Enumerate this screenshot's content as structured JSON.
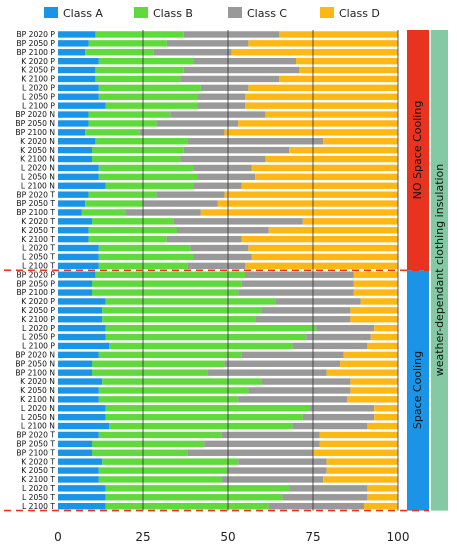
{
  "chart_data": {
    "type": "bar",
    "orientation": "horizontal",
    "stacked": true,
    "legend_position": "top",
    "grid": false,
    "xlim": [
      0,
      100
    ],
    "x_ticks": [
      "0",
      "25",
      "50",
      "75",
      "100"
    ],
    "categories": [
      "BP 2020 P",
      "BP 2050 P",
      "BP 2100 P",
      "K 2020 P",
      "K 2050 P",
      "K 2100 P",
      "L 2020 P",
      "L 2050 P",
      "L 2100 P",
      "BP 2020 N",
      "BP 2050 N",
      "BP 2100 N",
      "K 2020 N",
      "K 2050 N",
      "K 2100 N",
      "L 2020 N",
      "L 2050 N",
      "L 2100 N",
      "BP 2020 T",
      "BP 2050 T",
      "BP 2100 T",
      "K 2020 T",
      "K 2050 T",
      "K 2100 T",
      "L 2020 T",
      "L 2050 T",
      "L 2100 T",
      "BP 2020 P",
      "BP 2050 P",
      "BP 2100 P",
      "K 2020 P",
      "K 2050 P",
      "K 2100 P",
      "L 2020 P",
      "L 2050 P",
      "L 2100 P",
      "BP 2020 N",
      "BP 2050 N",
      "BP 2100 N",
      "K 2020 N",
      "K 2050 N",
      "K 2100 N",
      "L 2020 N",
      "L 2050 N",
      "L 2100 N",
      "BP 2020 T",
      "BP 2050 T",
      "BP 2100 T",
      "K 2020 T",
      "K 2050 T",
      "K 2100 T",
      "L 2020 T",
      "L 2050 T",
      "L 2100 T"
    ],
    "series": [
      {
        "name": "Class A",
        "color": "#1a94e6",
        "values": [
          11,
          9,
          8,
          12,
          11,
          11,
          12,
          12,
          14,
          9,
          9,
          8,
          11,
          10,
          10,
          12,
          12,
          14,
          9,
          8,
          7,
          10,
          9,
          9,
          12,
          12,
          12,
          11,
          10,
          10,
          14,
          13,
          13,
          14,
          14,
          15,
          12,
          10,
          10,
          13,
          12,
          12,
          14,
          14,
          15,
          12,
          10,
          10,
          13,
          12,
          12,
          14,
          14,
          14
        ]
      },
      {
        "name": "Class B",
        "color": "#5fd93b",
        "values": [
          26,
          23,
          20,
          28,
          26,
          25,
          30,
          29,
          27,
          24,
          20,
          16,
          27,
          27,
          26,
          28,
          29,
          26,
          20,
          17,
          13,
          24,
          26,
          23,
          27,
          28,
          26,
          44,
          44,
          43,
          50,
          47,
          45,
          62,
          59,
          54,
          42,
          39,
          34,
          47,
          44,
          41,
          60,
          58,
          54,
          36,
          33,
          28,
          40,
          38,
          36,
          54,
          52,
          48
        ]
      },
      {
        "name": "Class C",
        "color": "#999999",
        "values": [
          28,
          24,
          23,
          30,
          34,
          29,
          14,
          14,
          14,
          28,
          24,
          25,
          40,
          31,
          25,
          17,
          17,
          14,
          20,
          22,
          22,
          38,
          27,
          22,
          17,
          17,
          17,
          32,
          33,
          34,
          25,
          26,
          28,
          17,
          19,
          22,
          30,
          34,
          35,
          26,
          30,
          32,
          19,
          21,
          22,
          29,
          34,
          37,
          26,
          29,
          30,
          23,
          25,
          28
        ]
      },
      {
        "name": "Class D",
        "color": "#fdb815",
        "values": [
          35,
          44,
          49,
          30,
          29,
          35,
          44,
          45,
          45,
          39,
          47,
          51,
          22,
          32,
          39,
          43,
          42,
          46,
          51,
          53,
          58,
          28,
          38,
          46,
          44,
          43,
          45,
          13,
          13,
          13,
          11,
          14,
          14,
          7,
          8,
          9,
          16,
          17,
          21,
          14,
          14,
          15,
          7,
          7,
          9,
          23,
          23,
          25,
          21,
          21,
          22,
          9,
          9,
          10
        ]
      }
    ],
    "group_labels": [
      "NO Space Cooling",
      "Space Cooling"
    ],
    "group_colors": [
      "#e8331f",
      "#1a94e6"
    ],
    "outer_label": "weather-dependant clothing insulation",
    "outer_color": "#83c9a4"
  }
}
